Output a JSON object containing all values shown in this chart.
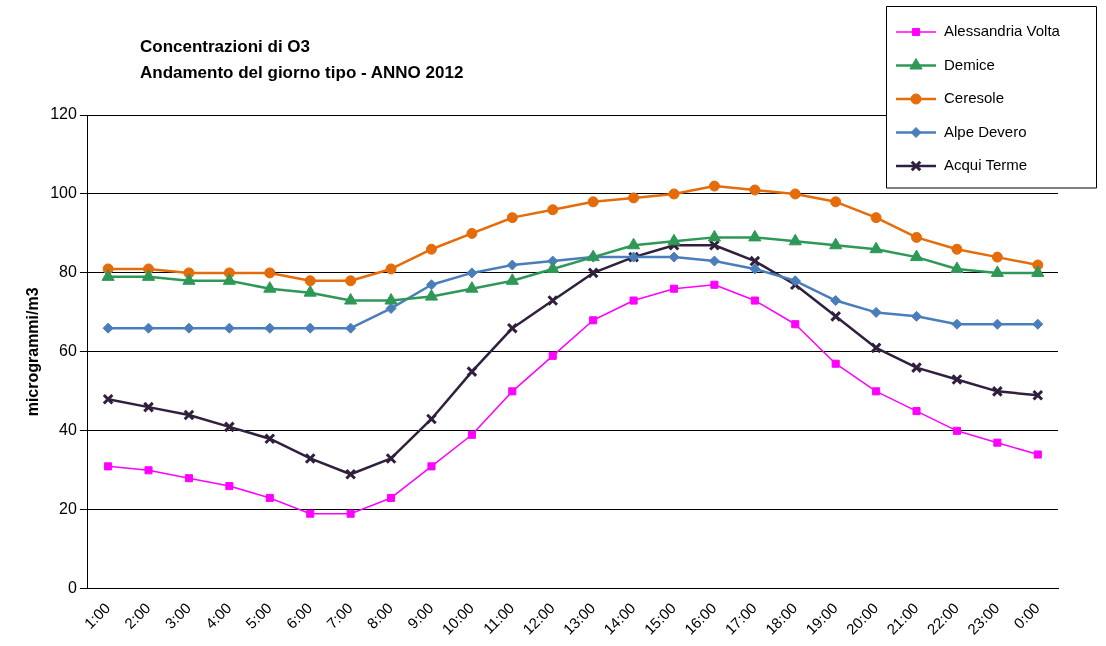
{
  "chart_data": {
    "type": "line",
    "title": "Concentrazioni di O3",
    "subtitle": "Andamento del giorno tipo - ANNO 2012",
    "ylabel": "microgrammi/m3",
    "categories": [
      "1:00",
      "2:00",
      "3:00",
      "4:00",
      "5:00",
      "6:00",
      "7:00",
      "8:00",
      "9:00",
      "10:00",
      "11:00",
      "12:00",
      "13:00",
      "14:00",
      "15:00",
      "16:00",
      "17:00",
      "18:00",
      "19:00",
      "20:00",
      "21:00",
      "22:00",
      "23:00",
      "0:00"
    ],
    "ylim": [
      0,
      120
    ],
    "yticks": [
      0,
      20,
      40,
      60,
      80,
      100,
      120
    ],
    "grid": "y",
    "legend": "top right",
    "line_style": "solid",
    "series": [
      {
        "name": "Alessandria Volta",
        "color": "#ff00ff",
        "marker": "square",
        "values": [
          31,
          30,
          28,
          26,
          23,
          19,
          19,
          23,
          31,
          39,
          50,
          59,
          68,
          73,
          76,
          77,
          73,
          67,
          57,
          50,
          45,
          40,
          37,
          34
        ]
      },
      {
        "name": "Demice",
        "color": "#2e9856",
        "marker": "triangle",
        "values": [
          79,
          79,
          78,
          78,
          76,
          75,
          73,
          73,
          74,
          76,
          78,
          81,
          84,
          87,
          88,
          89,
          89,
          88,
          87,
          86,
          84,
          81,
          80,
          80
        ]
      },
      {
        "name": "Ceresole",
        "color": "#e46c0a",
        "marker": "circle",
        "values": [
          81,
          81,
          80,
          80,
          80,
          78,
          78,
          81,
          86,
          90,
          94,
          96,
          98,
          99,
          100,
          102,
          101,
          100,
          98,
          94,
          89,
          86,
          84,
          82
        ]
      },
      {
        "name": "Alpe Devero",
        "color": "#4a7ebb",
        "marker": "diamond",
        "values": [
          66,
          66,
          66,
          66,
          66,
          66,
          66,
          71,
          77,
          80,
          82,
          83,
          84,
          84,
          84,
          83,
          81,
          78,
          73,
          70,
          69,
          67,
          67,
          67
        ]
      },
      {
        "name": "Acqui Terme",
        "color": "#30203e",
        "marker": "cross",
        "values": [
          48,
          46,
          44,
          41,
          38,
          33,
          29,
          33,
          43,
          55,
          66,
          73,
          80,
          84,
          87,
          87,
          83,
          77,
          69,
          61,
          56,
          53,
          50,
          49
        ]
      }
    ]
  }
}
